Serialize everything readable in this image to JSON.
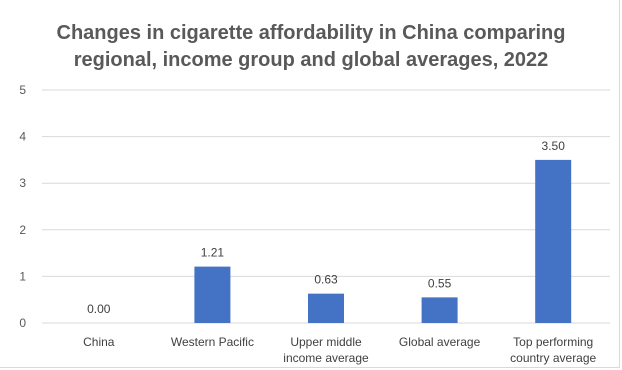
{
  "chart_data": {
    "type": "bar",
    "title_lines": [
      "Changes in cigarette affordability in China comparing",
      "regional, income group and global averages, 2022"
    ],
    "categories": [
      [
        "China"
      ],
      [
        "Western Pacific"
      ],
      [
        "Upper middle",
        "income average"
      ],
      [
        "Global average"
      ],
      [
        "Top performing",
        "country average"
      ]
    ],
    "values": [
      0.0,
      1.21,
      0.63,
      0.55,
      3.5
    ],
    "data_labels": [
      "0.00",
      "1.21",
      "0.63",
      "0.55",
      "3.50"
    ],
    "y_ticks": [
      "0",
      "1",
      "2",
      "3",
      "4",
      "5"
    ],
    "ylim": [
      0,
      5
    ],
    "grid": true,
    "legend": "none",
    "bar_color": "#4472c4",
    "grid_color": "#d9d9d9"
  }
}
